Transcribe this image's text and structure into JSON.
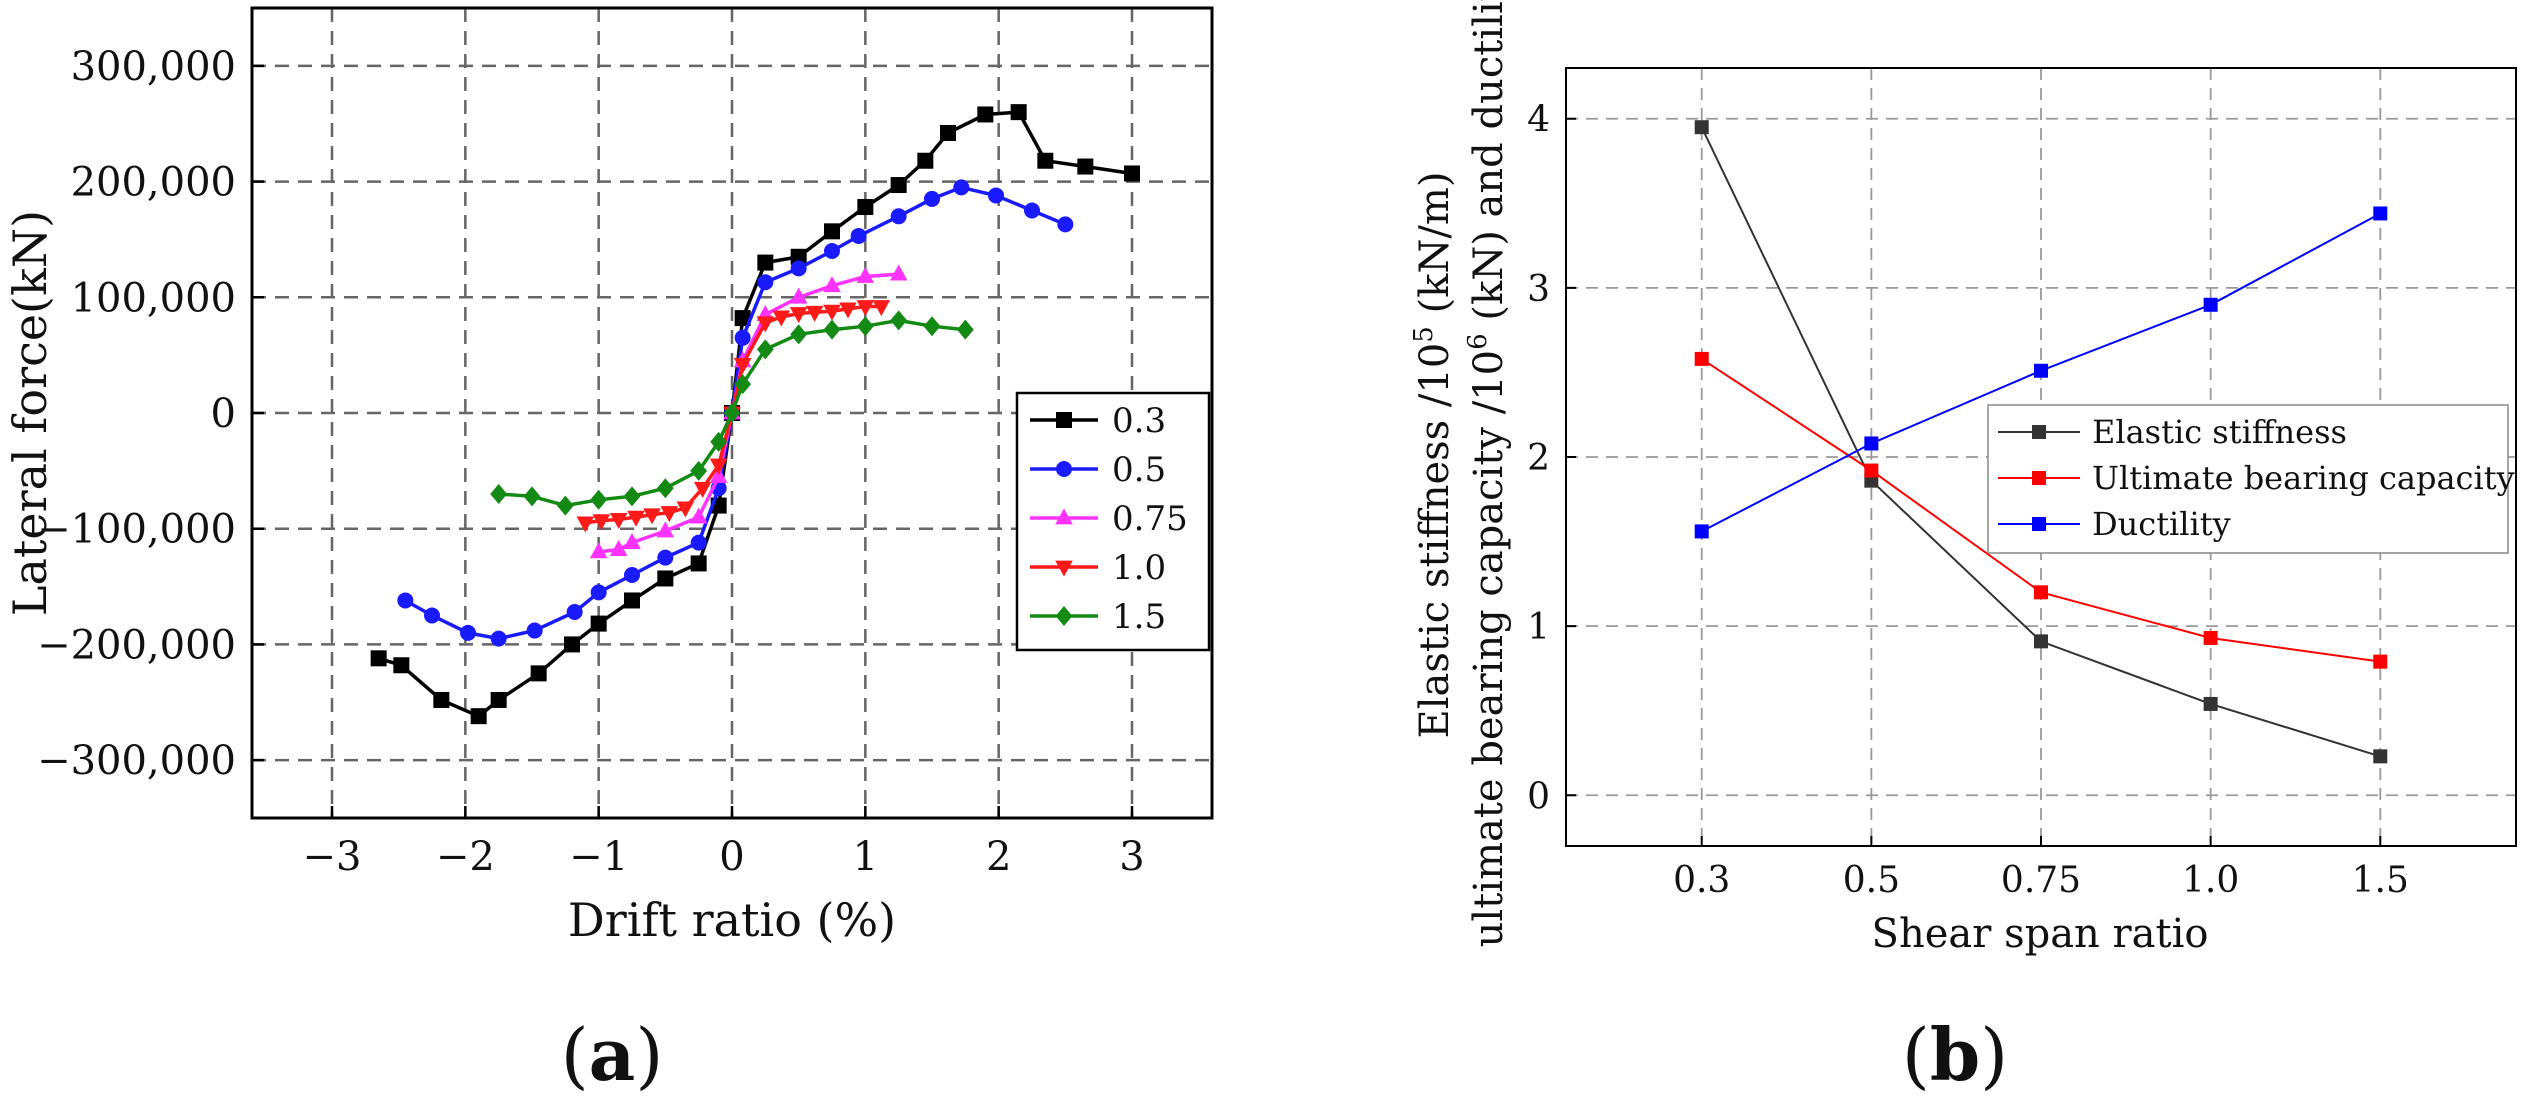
{
  "chart_data": [
    {
      "type": "line",
      "panel_label": "a",
      "xlabel": "Drift ratio (%)",
      "ylabel": "Lateral force(kN)",
      "xlim": [
        -3.6,
        3.6
      ],
      "ylim": [
        -350000,
        350000
      ],
      "xticks": [
        -3,
        -2,
        -1,
        0,
        1,
        2,
        3
      ],
      "xtick_labels": [
        "−3",
        "−2",
        "−1",
        "0",
        "1",
        "2",
        "3"
      ],
      "yticks": [
        -300000,
        -200000,
        -100000,
        0,
        100000,
        200000,
        300000
      ],
      "ytick_labels": [
        "−300,000",
        "−200,000",
        "−100,000",
        "0",
        "100,000",
        "200,000",
        "300,000"
      ],
      "grid": true,
      "legend_position": "right",
      "series": [
        {
          "name": "0.3",
          "color": "#000000",
          "marker": "square",
          "x": [
            -2.65,
            -2.48,
            -2.18,
            -1.9,
            -1.75,
            -1.45,
            -1.2,
            -1.0,
            -0.75,
            -0.5,
            -0.25,
            -0.1,
            0.0,
            0.08,
            0.25,
            0.5,
            0.75,
            1.0,
            1.25,
            1.45,
            1.62,
            1.9,
            2.15,
            2.35,
            2.65,
            3.0
          ],
          "y": [
            -212000,
            -218000,
            -248000,
            -262000,
            -248000,
            -225000,
            -200000,
            -182000,
            -162000,
            -143000,
            -130000,
            -80000,
            0,
            82000,
            130000,
            135000,
            157000,
            178000,
            197000,
            218000,
            242000,
            258000,
            260000,
            218000,
            213000,
            207000
          ]
        },
        {
          "name": "0.5",
          "color": "#1a1aff",
          "marker": "circle",
          "x": [
            -2.45,
            -2.25,
            -1.98,
            -1.75,
            -1.48,
            -1.18,
            -1.0,
            -0.75,
            -0.5,
            -0.25,
            -0.1,
            0.0,
            0.08,
            0.25,
            0.5,
            0.75,
            0.95,
            1.25,
            1.5,
            1.72,
            1.98,
            2.25,
            2.5
          ],
          "y": [
            -162000,
            -175000,
            -190000,
            -195000,
            -188000,
            -172000,
            -155000,
            -140000,
            -125000,
            -112000,
            -65000,
            0,
            65000,
            113000,
            125000,
            140000,
            153000,
            170000,
            185000,
            195000,
            188000,
            175000,
            163000
          ]
        },
        {
          "name": "0.75",
          "color": "#ff33ff",
          "marker": "triangle-up",
          "x": [
            -1.0,
            -0.85,
            -0.75,
            -0.5,
            -0.25,
            -0.1,
            0.0,
            0.08,
            0.25,
            0.5,
            0.75,
            1.0,
            1.25
          ],
          "y": [
            -120000,
            -118000,
            -112000,
            -102000,
            -90000,
            -55000,
            0,
            45000,
            85000,
            100000,
            110000,
            118000,
            120000
          ]
        },
        {
          "name": "1.0",
          "color": "#ff1a1a",
          "marker": "triangle-down",
          "x": [
            -1.1,
            -0.98,
            -0.85,
            -0.72,
            -0.6,
            -0.47,
            -0.35,
            -0.22,
            -0.1,
            0.0,
            0.08,
            0.25,
            0.37,
            0.5,
            0.62,
            0.75,
            0.87,
            1.0,
            1.12
          ],
          "y": [
            -95000,
            -93000,
            -92000,
            -90000,
            -88000,
            -86000,
            -82000,
            -65000,
            -45000,
            0,
            42000,
            78000,
            83000,
            86000,
            87000,
            88000,
            90000,
            92000,
            92000
          ]
        },
        {
          "name": "1.5",
          "color": "#138a13",
          "marker": "diamond",
          "x": [
            -1.75,
            -1.5,
            -1.25,
            -1.0,
            -0.75,
            -0.5,
            -0.25,
            -0.1,
            0.0,
            0.08,
            0.25,
            0.5,
            0.75,
            1.0,
            1.25,
            1.5,
            1.75
          ],
          "y": [
            -70000,
            -72000,
            -80000,
            -75000,
            -72000,
            -65000,
            -50000,
            -25000,
            0,
            25000,
            55000,
            68000,
            72000,
            75000,
            80000,
            75000,
            72000
          ]
        }
      ]
    },
    {
      "type": "line",
      "panel_label": "b",
      "xlabel": "Shear span ratio",
      "ylabel_line1": "Elastic stiffness /10",
      "ylabel_sup1": "5",
      "ylabel_mid": " (kN/m)",
      "ylabel_line2": "ultimate bearing capacity /10",
      "ylabel_sup2": "6",
      "ylabel_end": " (kN) and ductility",
      "categories": [
        "0.3",
        "0.5",
        "0.75",
        "1.0",
        "1.5"
      ],
      "ylim": [
        -0.3,
        4.3
      ],
      "yticks": [
        0,
        1,
        2,
        3,
        4
      ],
      "ytick_labels": [
        "0",
        "1",
        "2",
        "3",
        "4"
      ],
      "grid": true,
      "legend_position": "right",
      "series": [
        {
          "name": "Elastic stiffness",
          "color": "#333333",
          "values": [
            3.95,
            1.86,
            0.91,
            0.54,
            0.23
          ]
        },
        {
          "name": "Ultimate bearing capacity",
          "color": "#ff0000",
          "values": [
            2.58,
            1.92,
            1.2,
            0.93,
            0.79
          ]
        },
        {
          "name": "Ductility",
          "color": "#0000ff",
          "values": [
            1.56,
            2.08,
            2.51,
            2.9,
            3.44
          ]
        }
      ]
    }
  ]
}
